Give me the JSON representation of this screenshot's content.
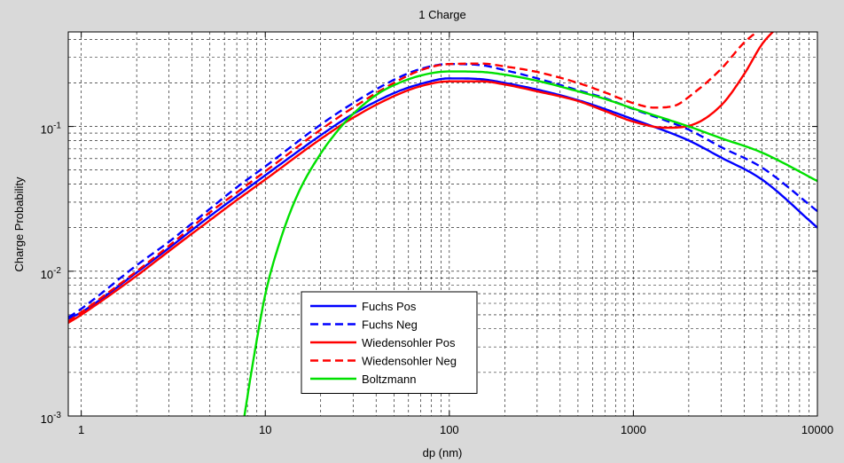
{
  "chart_data": {
    "type": "line",
    "title": "1 Charge",
    "xlabel": "dp (nm)",
    "ylabel": "Charge Probability",
    "xscale": "log",
    "yscale": "log",
    "xlim": [
      0.85,
      10000
    ],
    "ylim": [
      0.001,
      0.45
    ],
    "grid": true,
    "x_ticks": [
      {
        "value": 1,
        "label": "1"
      },
      {
        "value": 10,
        "label": "10"
      },
      {
        "value": 100,
        "label": "100"
      },
      {
        "value": 1000,
        "label": "1000"
      },
      {
        "value": 10000,
        "label": "10000"
      }
    ],
    "y_ticks": [
      {
        "value": 0.001,
        "base": "10",
        "exp": "-3"
      },
      {
        "value": 0.01,
        "base": "10",
        "exp": "-2"
      },
      {
        "value": 0.1,
        "base": "10",
        "exp": "-1"
      }
    ],
    "legend": {
      "position": "lower-center"
    },
    "series": [
      {
        "name": "Fuchs Pos",
        "color": "#0000ff",
        "dash": "solid",
        "x": [
          0.85,
          1,
          2,
          3,
          5,
          7,
          10,
          20,
          30,
          50,
          70,
          100,
          150,
          200,
          300,
          500,
          700,
          1000,
          2000,
          3000,
          5000,
          10000
        ],
        "y": [
          0.0047,
          0.0052,
          0.0098,
          0.0145,
          0.024,
          0.033,
          0.046,
          0.087,
          0.122,
          0.17,
          0.197,
          0.215,
          0.212,
          0.2,
          0.18,
          0.152,
          0.132,
          0.112,
          0.08,
          0.061,
          0.043,
          0.02
        ]
      },
      {
        "name": "Fuchs Neg",
        "color": "#0000ff",
        "dash": "dashed",
        "x": [
          0.85,
          1,
          2,
          3,
          5,
          7,
          10,
          20,
          30,
          50,
          70,
          100,
          150,
          200,
          300,
          500,
          700,
          1000,
          2000,
          3000,
          5000,
          10000
        ],
        "y": [
          0.0048,
          0.0055,
          0.011,
          0.016,
          0.027,
          0.038,
          0.053,
          0.103,
          0.145,
          0.21,
          0.25,
          0.27,
          0.265,
          0.245,
          0.215,
          0.178,
          0.157,
          0.132,
          0.095,
          0.072,
          0.052,
          0.026
        ]
      },
      {
        "name": "Wiedensohler Pos",
        "color": "#ff0000",
        "dash": "solid",
        "x": [
          0.85,
          1,
          2,
          3,
          5,
          7,
          10,
          20,
          30,
          50,
          70,
          100,
          150,
          200,
          300,
          500,
          700,
          1000,
          1500,
          2000,
          3000,
          4000,
          5000,
          6000
        ],
        "y": [
          0.0044,
          0.005,
          0.0093,
          0.0138,
          0.0225,
          0.031,
          0.043,
          0.082,
          0.115,
          0.162,
          0.19,
          0.205,
          0.205,
          0.195,
          0.175,
          0.15,
          0.128,
          0.108,
          0.098,
          0.101,
          0.14,
          0.23,
          0.37,
          0.48
        ]
      },
      {
        "name": "Wiedensohler Neg",
        "color": "#ff0000",
        "dash": "dashed",
        "x": [
          0.85,
          1,
          2,
          3,
          5,
          7,
          10,
          20,
          30,
          50,
          70,
          100,
          150,
          200,
          300,
          500,
          700,
          1000,
          1300,
          1700,
          2000,
          3000,
          4000,
          5000
        ],
        "y": [
          0.0045,
          0.0052,
          0.01,
          0.015,
          0.0255,
          0.035,
          0.049,
          0.095,
          0.135,
          0.2,
          0.245,
          0.27,
          0.272,
          0.26,
          0.238,
          0.2,
          0.172,
          0.145,
          0.135,
          0.14,
          0.16,
          0.25,
          0.38,
          0.48
        ]
      },
      {
        "name": "Boltzmann",
        "color": "#00e000",
        "dash": "solid",
        "x": [
          7.7,
          8.5,
          10,
          12,
          15,
          20,
          25,
          30,
          40,
          50,
          70,
          100,
          150,
          200,
          300,
          500,
          700,
          1000,
          2000,
          3000,
          5000,
          10000
        ],
        "y": [
          0.001,
          0.0022,
          0.0069,
          0.016,
          0.034,
          0.065,
          0.095,
          0.122,
          0.165,
          0.193,
          0.225,
          0.24,
          0.238,
          0.228,
          0.207,
          0.175,
          0.155,
          0.133,
          0.1,
          0.083,
          0.066,
          0.042
        ]
      }
    ]
  }
}
